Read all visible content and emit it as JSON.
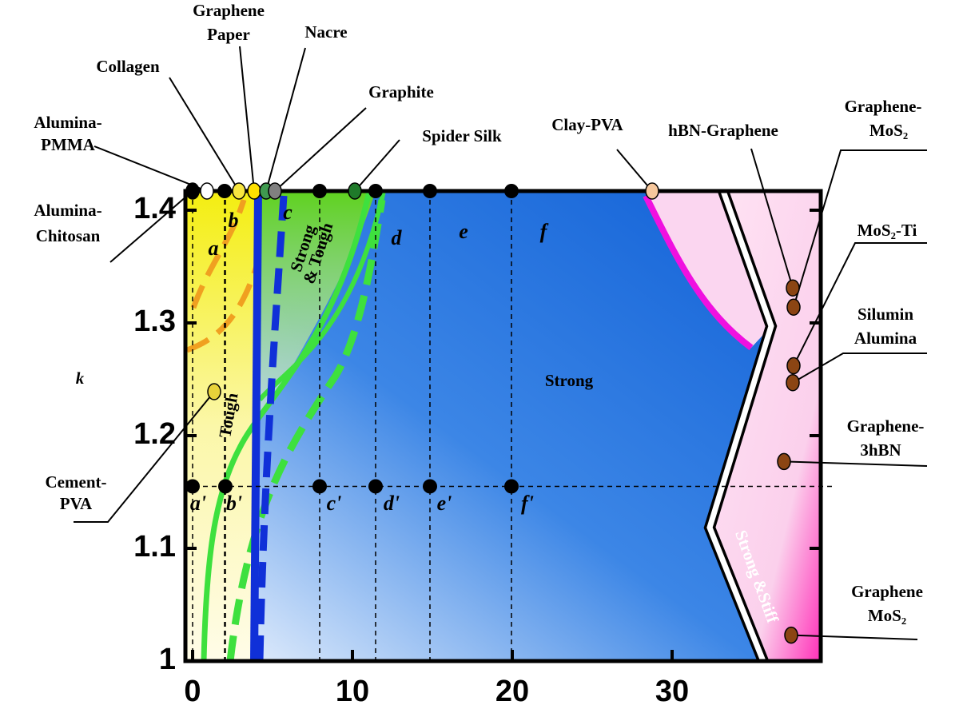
{
  "chart_data": {
    "type": "scatter",
    "y_label": "k",
    "xlim": [
      -0.45,
      39.3
    ],
    "ylim": [
      1,
      1.417
    ],
    "xticks": [
      0,
      10,
      20,
      30
    ],
    "yticks": [
      1,
      1.1,
      1.2,
      1.3,
      1.4
    ],
    "region_labels": {
      "strong": "Strong",
      "tough": "Tough",
      "strong_tough": [
        "Strong",
        "& Tough"
      ],
      "strong_stiff": "Strong &Stiff"
    },
    "points": [
      {
        "label": "a",
        "x": 0,
        "y": 1.417,
        "color": "#000000"
      },
      {
        "label": "b",
        "x": 2,
        "y": 1.417,
        "color": "#000000"
      },
      {
        "label": "c",
        "x": 7.95,
        "y": 1.417,
        "color": "#000000"
      },
      {
        "label": "d",
        "x": 11.45,
        "y": 1.417,
        "color": "#000000"
      },
      {
        "label": "e",
        "x": 14.85,
        "y": 1.417,
        "color": "#000000"
      },
      {
        "label": "f",
        "x": 19.95,
        "y": 1.417,
        "color": "#000000"
      },
      {
        "label": "a'",
        "x": 0,
        "y": 1.155,
        "color": "#000000"
      },
      {
        "label": "b'",
        "x": 2.05,
        "y": 1.155,
        "color": "#000000"
      },
      {
        "label": "c'",
        "x": 7.95,
        "y": 1.155,
        "color": "#000000"
      },
      {
        "label": "d'",
        "x": 11.45,
        "y": 1.155,
        "color": "#000000"
      },
      {
        "label": "e'",
        "x": 14.85,
        "y": 1.155,
        "color": "#000000"
      },
      {
        "label": "f'",
        "x": 19.95,
        "y": 1.155,
        "color": "#000000"
      }
    ],
    "materials": [
      {
        "name": [
          "Alumina-",
          "Chitosan"
        ],
        "x": 0,
        "y": 1.417,
        "color": "#000000"
      },
      {
        "name": [
          "Alumina-",
          "PMMA"
        ],
        "x": 0.9,
        "y": 1.417,
        "color": "#ffffff"
      },
      {
        "name": [
          "Collagen"
        ],
        "x": 2.9,
        "y": 1.417,
        "color": "#f7e640"
      },
      {
        "name": [
          "Graphene",
          "Paper"
        ],
        "x": 3.85,
        "y": 1.417,
        "color": "#ffe000"
      },
      {
        "name": [
          "Nacre"
        ],
        "x": 4.6,
        "y": 1.417,
        "color": "#3f9a4f"
      },
      {
        "name": [
          "Graphite"
        ],
        "x": 5.15,
        "y": 1.417,
        "color": "#808080"
      },
      {
        "name": [
          "Spider Silk"
        ],
        "x": 10.15,
        "y": 1.417,
        "color": "#1f7a2a"
      },
      {
        "name": [
          "Clay-PVA"
        ],
        "x": 28.75,
        "y": 1.417,
        "color": "#f6c79c"
      },
      {
        "name": [
          "hBN-Graphene"
        ],
        "x": 37.55,
        "y": 1.331,
        "color": "#8b4513"
      },
      {
        "name": [
          "Graphene-",
          "MoS₂"
        ],
        "x": 37.6,
        "y": 1.314,
        "color": "#8b4513"
      },
      {
        "name": [
          "MoS₂-Ti"
        ],
        "x": 37.6,
        "y": 1.262,
        "color": "#8b4513"
      },
      {
        "name": [
          "Silumin",
          "Alumina"
        ],
        "x": 37.55,
        "y": 1.247,
        "color": "#8b4513"
      },
      {
        "name": [
          "Graphene-",
          "3hBN"
        ],
        "x": 37.0,
        "y": 1.177,
        "color": "#8b4513"
      },
      {
        "name": [
          "Graphene",
          "MoS₂"
        ],
        "x": 37.45,
        "y": 1.023,
        "color": "#8b4513"
      },
      {
        "name": [
          "Cement-",
          "PVA"
        ],
        "x": 1.35,
        "y": 1.239,
        "color": "#e8d23a"
      }
    ]
  }
}
